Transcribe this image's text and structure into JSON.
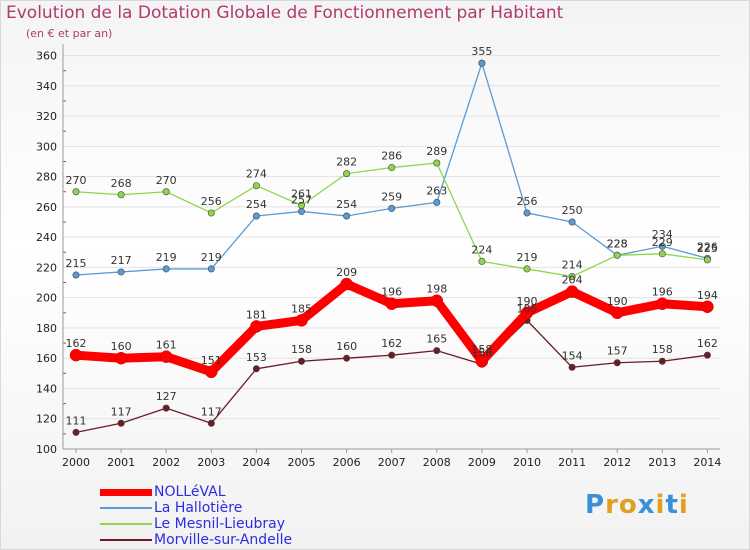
{
  "title": "Evolution de la Dotation Globale de Fonctionnement par Habitant",
  "subtitle": "(en € et par an)",
  "chart_data": {
    "type": "line",
    "title": "Evolution de la Dotation Globale de Fonctionnement par Habitant",
    "subtitle": "(en € et par an)",
    "xlabel": "",
    "ylabel": "",
    "x": [
      "2000",
      "2001",
      "2002",
      "2003",
      "2004",
      "2005",
      "2006",
      "2007",
      "2008",
      "2009",
      "2010",
      "2011",
      "2012",
      "2013",
      "2014"
    ],
    "ylim": [
      100,
      365
    ],
    "yticks": [
      100,
      120,
      140,
      160,
      180,
      200,
      220,
      240,
      260,
      280,
      300,
      320,
      340,
      360
    ],
    "legend_position": "bottom-left",
    "series": [
      {
        "name": "NOLLéVAL",
        "color": "#ff0000",
        "values": [
          162,
          160,
          161,
          151,
          181,
          185,
          209,
          196,
          198,
          158,
          190,
          204,
          190,
          196,
          194
        ],
        "labels": [
          "162",
          "160",
          "161",
          "151",
          "181",
          "185",
          "209",
          "196",
          "198",
          "158",
          "190",
          "204",
          "190",
          "196",
          "194"
        ]
      },
      {
        "name": "La Hallotière",
        "color": "#5a9bd4",
        "values": [
          215,
          217,
          219,
          219,
          254,
          257,
          254,
          259,
          263,
          355,
          256,
          250,
          228,
          234,
          226
        ],
        "labels": [
          "215",
          "217",
          "219",
          "219",
          "254",
          "257",
          "254",
          "259",
          "263",
          "355",
          "256",
          "250",
          "228",
          "234",
          "226"
        ]
      },
      {
        "name": "Le Mesnil-Lieubray",
        "color": "#8fd64a",
        "values": [
          270,
          268,
          270,
          256,
          274,
          261,
          282,
          286,
          289,
          224,
          219,
          214,
          228,
          229,
          225
        ],
        "labels": [
          "270",
          "268",
          "270",
          "256",
          "274",
          "261",
          "282",
          "286",
          "289",
          "224",
          "219",
          "214",
          "228",
          "229",
          "225"
        ]
      },
      {
        "name": "Morville-sur-Andelle",
        "color": "#6b1c24",
        "values": [
          111,
          117,
          127,
          117,
          153,
          158,
          160,
          162,
          165,
          156,
          185,
          154,
          157,
          158,
          162
        ],
        "labels": [
          "111",
          "117",
          "127",
          "117",
          "153",
          "158",
          "160",
          "162",
          "165",
          "156",
          "185",
          "154",
          "157",
          "158",
          "162"
        ]
      }
    ]
  },
  "legend": [
    {
      "label": "NOLLéVAL",
      "color": "#ff0000"
    },
    {
      "label": "La Hallotière",
      "color": "#5a9bd4"
    },
    {
      "label": "Le Mesnil-Lieubray",
      "color": "#8fd64a"
    },
    {
      "label": "Morville-sur-Andelle",
      "color": "#6b1c24"
    }
  ],
  "brand": {
    "text": "Proxiti",
    "letters": [
      "P",
      "r",
      "o",
      "x",
      "i",
      "t",
      "i"
    ],
    "colors": [
      "#3a8fd8",
      "#e0a020",
      "#e0a020",
      "#3a8fd8",
      "#e0a020",
      "#3a8fd8",
      "#e0a020"
    ]
  }
}
